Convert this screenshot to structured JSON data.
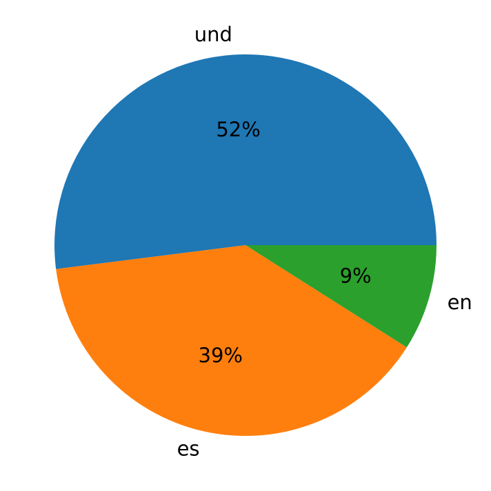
{
  "chart_data": {
    "type": "pie",
    "categories": [
      "und",
      "es",
      "en"
    ],
    "values": [
      52,
      39,
      9
    ],
    "value_labels": [
      "52%",
      "39%",
      "9%"
    ],
    "colors": [
      "#1f77b4",
      "#ff7f0e",
      "#2ca02c"
    ]
  }
}
